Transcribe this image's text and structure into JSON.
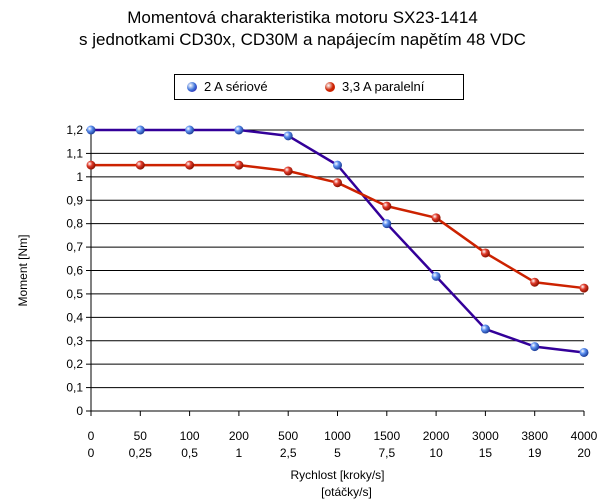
{
  "chart_data": {
    "type": "line",
    "title": "Momentová charakteristika motoru SX23-1414",
    "subtitle": "s jednotkami CD30x, CD30M a napájecím napětím 48 VDC",
    "xlabel": "Rychlost [kroky/s]",
    "xlabel2": "[otáčky/s]",
    "ylabel": "Moment [Nm]",
    "categories": [
      "0",
      "50",
      "100",
      "200",
      "500",
      "1000",
      "1500",
      "2000",
      "3000",
      "3800",
      "4000"
    ],
    "categories2": [
      "0",
      "0,25",
      "0,5",
      "1",
      "2,5",
      "5",
      "7,5",
      "10",
      "15",
      "19",
      "20"
    ],
    "ylim": [
      0,
      1.2
    ],
    "yticks": [
      "0",
      "0,1",
      "0,2",
      "0,3",
      "0,4",
      "0,5",
      "0,6",
      "0,7",
      "0,8",
      "0,9",
      "1",
      "1,1",
      "1,2"
    ],
    "grid": true,
    "legend_position": "top",
    "series": [
      {
        "name": "2 A sériové",
        "color": "#330099",
        "marker": "#3a6fd8",
        "values": [
          1.2,
          1.2,
          1.2,
          1.2,
          1.175,
          1.05,
          0.8,
          0.575,
          0.35,
          0.275,
          0.25
        ]
      },
      {
        "name": "3,3 A paralelní",
        "color": "#cc2200",
        "marker": "#cc2200",
        "values": [
          1.05,
          1.05,
          1.05,
          1.05,
          1.025,
          0.975,
          0.875,
          0.825,
          0.675,
          0.55,
          0.525
        ]
      }
    ]
  }
}
